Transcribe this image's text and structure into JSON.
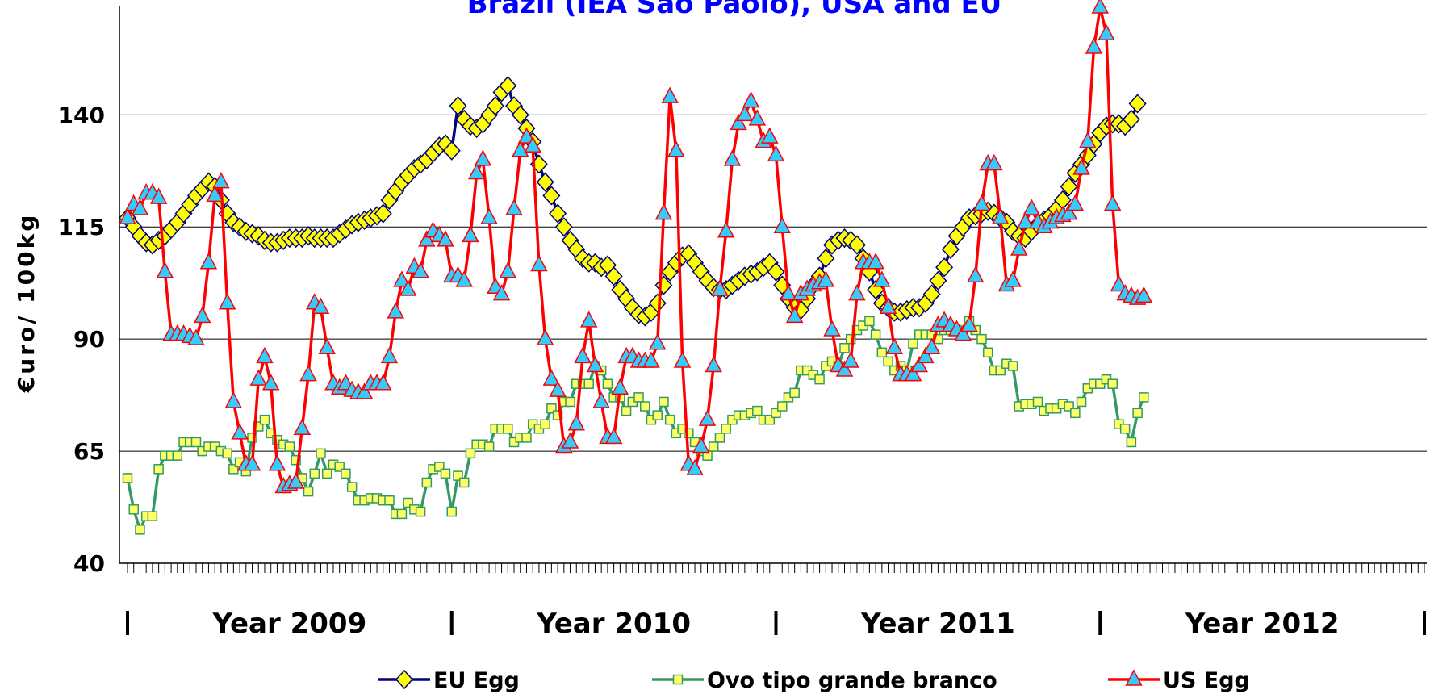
{
  "chart_data": {
    "type": "line",
    "title": "Brazil (IEA  São Paolo), USA and EU",
    "y_label": "€uro/ 100kg",
    "year_labels": [
      "Year 2009",
      "Year 2010",
      "Year 2011",
      "Year 2012"
    ],
    "xlim": [
      0,
      208
    ],
    "ylim": [
      40,
      165
    ],
    "yticks": [
      40,
      65,
      90,
      115,
      140
    ],
    "grid": true,
    "legend": "bottom",
    "series": [
      {
        "name": "EU Egg",
        "color": "#000080",
        "marker": "diamond",
        "marker_color": "#ffff00",
        "values": [
          117,
          115,
          113,
          111.5,
          111,
          112,
          113,
          114.5,
          116,
          118,
          120,
          122,
          123.5,
          125,
          124,
          121,
          118,
          116,
          115,
          114,
          113.5,
          113,
          112,
          111.5,
          111.5,
          112,
          112.5,
          112.5,
          112.5,
          113,
          112.5,
          112.5,
          112.5,
          112.5,
          113.5,
          114.5,
          115.5,
          116,
          116.5,
          117,
          117.5,
          118,
          121,
          123,
          125,
          126.5,
          128,
          129,
          130,
          131.5,
          133,
          133.5,
          132,
          142,
          139,
          137.5,
          137,
          138,
          140,
          142,
          145,
          146.5,
          142,
          140,
          137,
          134,
          129,
          125,
          122,
          118,
          115,
          112,
          110,
          108,
          107,
          107,
          106,
          106.5,
          104,
          101,
          99,
          97,
          95.5,
          95,
          96,
          98,
          102,
          105,
          107,
          108.5,
          109,
          107,
          105,
          103,
          101.5,
          101,
          101,
          102,
          103,
          104,
          104.5,
          105,
          106,
          107,
          105,
          102,
          99,
          97,
          96.5,
          99,
          102,
          104,
          108,
          111,
          112,
          112.5,
          112,
          111,
          108,
          105,
          101,
          98,
          97,
          96,
          96,
          96.5,
          97,
          97,
          98,
          100,
          103,
          106,
          110,
          113,
          115,
          117,
          117.5,
          118,
          118.5,
          118,
          117,
          116,
          114,
          113,
          112.5,
          114,
          115.5,
          116.5,
          117.5,
          119,
          121,
          124,
          127,
          129,
          131,
          133.5,
          136,
          137.5,
          138,
          138,
          137.5,
          139,
          142.5
        ]
      },
      {
        "name": "Ovo tipo grande branco",
        "color": "#339966",
        "marker": "square",
        "marker_color": "#ffff66",
        "values": [
          59,
          52,
          47.5,
          50.5,
          50.5,
          61,
          64,
          64,
          64,
          67,
          67,
          67,
          65,
          66,
          66,
          65,
          64.5,
          61,
          62.5,
          60.5,
          68,
          70.5,
          72,
          69,
          67.5,
          66.5,
          66,
          63,
          59,
          56,
          60,
          64.5,
          60,
          62,
          61.5,
          60,
          57,
          54,
          54,
          54.5,
          54.5,
          54,
          54,
          51,
          51,
          53.5,
          52,
          51.5,
          58,
          61,
          61.5,
          60,
          51.5,
          59.5,
          58,
          64.5,
          66.5,
          66.5,
          66,
          70,
          70,
          70,
          67,
          68,
          68,
          71,
          70,
          71,
          74.5,
          73,
          76,
          76,
          80,
          80,
          80,
          84,
          83,
          80,
          77,
          77,
          74,
          76,
          77,
          75,
          72,
          73,
          76,
          72,
          69,
          70,
          69,
          67,
          65,
          64,
          66,
          68,
          70,
          72,
          73,
          73,
          73.5,
          74,
          72,
          72,
          73.5,
          75,
          77,
          78,
          83,
          83,
          82,
          81,
          84,
          85,
          84,
          88,
          90,
          92,
          93,
          94,
          91,
          87,
          85,
          83,
          84,
          83,
          89,
          91,
          91,
          91,
          90,
          92,
          92,
          92,
          91.5,
          94,
          92,
          90,
          87,
          83,
          83,
          84.5,
          84,
          75,
          75.5,
          75.5,
          76,
          74,
          74.5,
          74.5,
          75.5,
          75,
          73.5,
          76,
          79,
          80,
          80,
          81,
          80,
          71,
          70,
          67,
          73.5,
          77
        ]
      },
      {
        "name": "US Egg",
        "color": "#ff0000",
        "marker": "triangle",
        "marker_color": "#33ccff",
        "values": [
          117,
          120,
          119,
          122.5,
          122.5,
          121.5,
          105,
          91,
          91,
          91,
          90.5,
          90,
          95,
          107,
          122,
          125,
          98,
          76,
          69,
          62,
          62,
          81,
          86,
          80,
          62,
          57,
          57.5,
          58,
          70,
          82,
          98,
          97,
          88,
          80,
          79,
          80,
          78.5,
          78,
          78,
          80,
          80,
          80,
          86,
          96,
          103,
          101,
          106,
          105,
          112,
          114,
          113,
          112,
          104,
          104,
          103,
          113,
          127,
          130,
          117,
          101.5,
          100,
          105,
          119,
          132,
          135,
          133,
          106.5,
          90,
          81,
          78.5,
          66,
          67,
          71,
          86,
          94,
          84,
          76,
          68,
          68,
          79,
          86,
          86,
          85,
          85,
          85,
          89,
          118,
          144,
          132,
          85,
          62,
          61,
          66,
          72,
          84,
          101,
          114,
          130,
          138,
          140,
          143,
          139,
          134,
          135,
          131,
          115,
          100,
          95,
          100,
          101,
          102,
          102.5,
          103,
          92,
          84,
          83,
          85,
          100,
          107,
          107,
          107,
          103,
          97,
          88,
          82,
          82,
          82,
          84,
          86,
          88,
          93,
          94,
          93,
          92,
          91,
          93,
          104,
          120,
          129,
          129,
          117,
          102,
          103,
          110,
          116,
          119,
          116,
          115,
          116,
          117,
          117.5,
          118,
          120,
          128,
          134,
          155,
          164,
          158,
          120,
          102,
          100,
          99.5,
          99,
          99.5
        ]
      }
    ]
  }
}
